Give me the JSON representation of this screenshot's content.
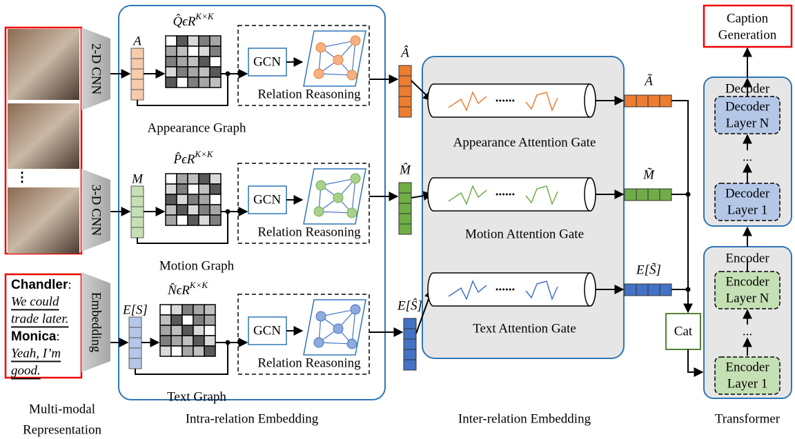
{
  "inputs": {
    "encoders": [
      "2-D CNN",
      "3-D CNN",
      "Embedding"
    ],
    "frame_ellipsis": "⋮",
    "dialogue": [
      {
        "speaker": "Chandler",
        "colon": ":",
        "lines": [
          "We could",
          "trade later."
        ]
      },
      {
        "speaker": "Monica",
        "colon": ":",
        "lines": [
          "Yeah, I’m",
          "good."
        ]
      }
    ]
  },
  "intra": {
    "branches": [
      {
        "feature": "A",
        "matrix": {
          "symbol": "Q̂ϵR",
          "exponent": "K×K"
        },
        "module": "GCN",
        "reasoning": "Relation Reasoning",
        "name": "Appearance Graph",
        "output": "Â"
      },
      {
        "feature": "M",
        "matrix": {
          "symbol": "P̂ϵR",
          "exponent": "K×K"
        },
        "module": "GCN",
        "reasoning": "Relation Reasoning",
        "name": "Motion Graph",
        "output": "M̂"
      },
      {
        "feature": "E[S]",
        "matrix": {
          "symbol": "N̂ϵR",
          "exponent": "K×K"
        },
        "module": "GCN",
        "reasoning": "Relation Reasoning",
        "name": "Text Graph",
        "output": "E[Ŝ]"
      }
    ]
  },
  "inter": {
    "gates": [
      {
        "name": "Appearance Attention Gate",
        "dots": "......",
        "output": "Ã"
      },
      {
        "name": "Motion Attention Gate",
        "dots": "......",
        "output": "M̃"
      },
      {
        "name": "Text Attention Gate",
        "dots": "......",
        "output": "E[S̃]"
      }
    ]
  },
  "fusion": "Cat",
  "transformer": {
    "output": [
      "Caption",
      "Generation"
    ],
    "decoder": {
      "title": "Decoder",
      "top": [
        "Decoder",
        "Layer N"
      ],
      "ellipsis": "...",
      "bottom": [
        "Decoder",
        "Layer 1"
      ]
    },
    "encoder": {
      "title": "Encoder",
      "top": [
        "Encoder",
        "Layer N"
      ],
      "ellipsis": "...",
      "bottom": [
        "Encoder",
        "Layer 1"
      ]
    }
  },
  "sections": [
    [
      "Multi-modal",
      "Representation"
    ],
    [
      "Intra-relation Embedding"
    ],
    [
      "Inter-relation Embedding"
    ],
    [
      "Transformer"
    ]
  ]
}
